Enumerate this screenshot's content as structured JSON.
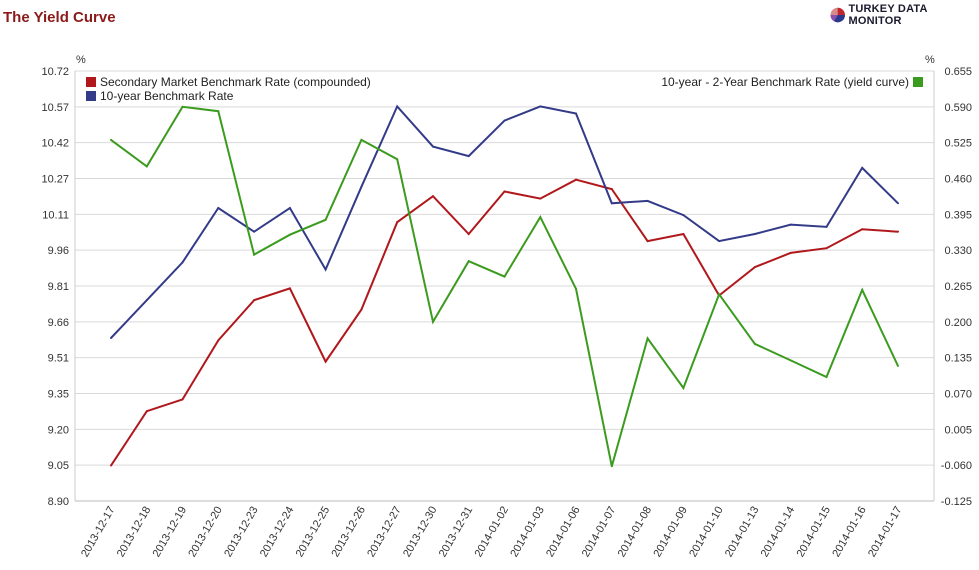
{
  "page": {
    "title": "The Yield Curve",
    "brand": "TURKEY DATA MONITOR",
    "brand_logo": "pie-logo-icon",
    "brand_logo_colors": [
      "#c0282d",
      "#2b3a8f",
      "#8a4fb0",
      "#d98a8a"
    ]
  },
  "chart_data": {
    "type": "line",
    "x": [
      "2013-12-17",
      "2013-12-18",
      "2013-12-19",
      "2013-12-20",
      "2013-12-23",
      "2013-12-24",
      "2013-12-25",
      "2013-12-26",
      "2013-12-27",
      "2013-12-30",
      "2013-12-31",
      "2014-01-02",
      "2014-01-03",
      "2014-01-06",
      "2014-01-07",
      "2014-01-08",
      "2014-01-09",
      "2014-01-10",
      "2014-01-13",
      "2014-01-14",
      "2014-01-15",
      "2014-01-16",
      "2014-01-17"
    ],
    "left_axis": {
      "unit": "%",
      "ylim": [
        8.9,
        10.72
      ],
      "ticks": [
        "10.72",
        "10.57",
        "10.42",
        "10.27",
        "10.11",
        "9.96",
        "9.81",
        "9.66",
        "9.51",
        "9.35",
        "9.20",
        "9.05",
        "8.90"
      ]
    },
    "right_axis": {
      "unit": "%",
      "ylim": [
        -0.125,
        0.655
      ],
      "ticks": [
        "0.655",
        "0.590",
        "0.525",
        "0.460",
        "0.395",
        "0.330",
        "0.265",
        "0.200",
        "0.135",
        "0.070",
        "0.005",
        "-0.060",
        "-0.125"
      ]
    },
    "grid": true,
    "series": [
      {
        "name": "Secondary Market Benchmark Rate (compounded)",
        "axis": "left",
        "color": "#b0181c",
        "values": [
          9.05,
          9.28,
          9.33,
          9.58,
          9.75,
          9.8,
          9.49,
          9.71,
          10.08,
          10.19,
          10.03,
          10.21,
          10.18,
          10.26,
          10.22,
          10.0,
          10.03,
          9.77,
          9.89,
          9.95,
          9.97,
          10.05,
          10.04
        ]
      },
      {
        "name": "10-year Benchmark Rate",
        "axis": "left",
        "color": "#333b88",
        "values": [
          9.59,
          9.75,
          9.91,
          10.14,
          10.04,
          10.14,
          9.88,
          10.23,
          10.57,
          10.4,
          10.36,
          10.51,
          10.57,
          10.54,
          10.16,
          10.17,
          10.11,
          10.0,
          10.03,
          10.07,
          10.06,
          10.31,
          10.16
        ]
      },
      {
        "name": "10-year - 2-Year Benchmark Rate (yield curve)",
        "axis": "right",
        "color": "#3b9b1e",
        "values": [
          0.53,
          0.482,
          0.59,
          0.582,
          0.322,
          0.358,
          0.385,
          0.53,
          0.495,
          0.2,
          0.31,
          0.282,
          0.39,
          0.26,
          -0.062,
          0.17,
          0.08,
          0.25,
          0.16,
          0.13,
          0.1,
          0.258,
          0.12
        ]
      }
    ],
    "legend": {
      "left": [
        "Secondary Market Benchmark Rate (compounded)",
        "10-year Benchmark Rate"
      ],
      "right": [
        "10-year - 2-Year Benchmark Rate (yield curve)"
      ],
      "placement": "top-left and top-right inside plot"
    }
  }
}
